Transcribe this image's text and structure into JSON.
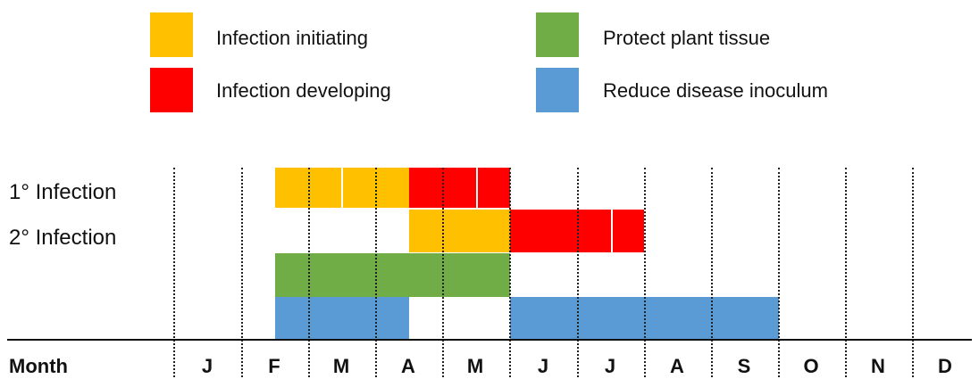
{
  "colors": {
    "initiating": "#FFC000",
    "developing": "#FF0000",
    "protect": "#70AD47",
    "reduce": "#5B9BD5"
  },
  "legend": {
    "initiating_label": "Infection initiating",
    "developing_label": "Infection developing",
    "protect_label": "Protect plant tissue",
    "reduce_label": "Reduce disease inoculum"
  },
  "rows": {
    "primary_label": "1° Infection",
    "secondary_label": "2° Infection"
  },
  "axis": {
    "header": "Month",
    "months": [
      "J",
      "F",
      "M",
      "A",
      "M",
      "J",
      "J",
      "A",
      "S",
      "O",
      "N",
      "D"
    ]
  }
}
